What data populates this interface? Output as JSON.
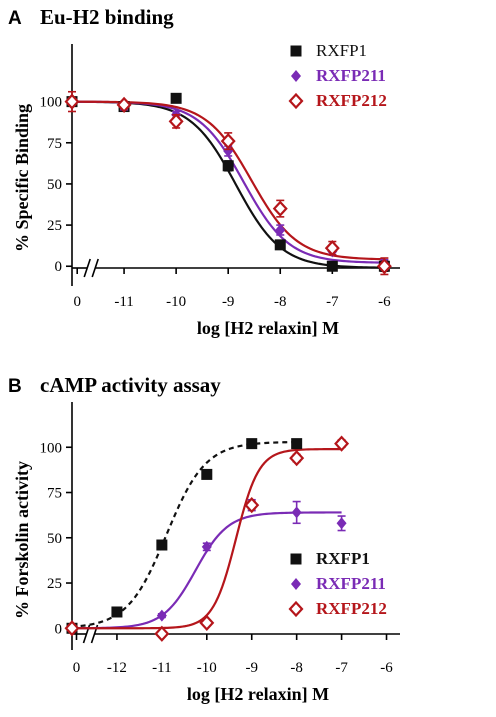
{
  "colors": {
    "rxfp1": "#111111",
    "rxfp211": "#7a2bb5",
    "rxfp212": "#b5161b",
    "axis": "#000000"
  },
  "chart_data": [
    {
      "panel": "A",
      "title": "Eu-H2 binding",
      "type": "scatter",
      "xlabel": "log [H2 relaxin] M",
      "ylabel": "% Specific Binding",
      "x_ticks": [
        "0",
        "-11",
        "-10",
        "-9",
        "-8",
        "-7",
        "-6"
      ],
      "x_tick_values": [
        -11.9,
        -11,
        -10,
        -9,
        -8,
        -7,
        -6
      ],
      "y_ticks": [
        "0",
        "25",
        "50",
        "75",
        "100"
      ],
      "y_tick_values": [
        0,
        25,
        50,
        75,
        100
      ],
      "xlim": [
        -12,
        -5.7
      ],
      "ylim": [
        -12,
        135
      ],
      "axis_break": true,
      "legend_position": "top-right",
      "series": [
        {
          "name": "RXFP1",
          "color_key": "rxfp1",
          "marker": "square",
          "x": [
            -12,
            -11,
            -10,
            -9,
            -8,
            -7,
            -6
          ],
          "y": [
            100,
            97,
            102,
            61,
            13,
            0,
            0
          ],
          "err": [
            0,
            2,
            2,
            3,
            2,
            2,
            3
          ],
          "fit": {
            "top": 100,
            "bottom": -1,
            "logEC50": -8.85,
            "hill": 1.0,
            "dashed": false
          }
        },
        {
          "name": "RXFP211",
          "color_key": "rxfp211",
          "marker": "diamond",
          "x": [
            -12,
            -11,
            -10,
            -9,
            -8,
            -7,
            -6
          ],
          "y": [
            100,
            97,
            92,
            70,
            22,
            9,
            1
          ],
          "err": [
            0,
            2,
            2,
            3,
            3,
            2,
            3
          ],
          "fit": {
            "top": 100,
            "bottom": 2,
            "logEC50": -8.7,
            "hill": 1.0,
            "dashed": false
          }
        },
        {
          "name": "RXFP212",
          "color_key": "rxfp212",
          "marker": "open-diamond",
          "x": [
            -12,
            -11,
            -10,
            -9,
            -8,
            -7,
            -6
          ],
          "y": [
            100,
            98,
            88,
            76,
            35,
            11,
            0
          ],
          "err": [
            6,
            2,
            4,
            5,
            5,
            4,
            5
          ],
          "fit": {
            "top": 100,
            "bottom": 4,
            "logEC50": -8.55,
            "hill": 1.0,
            "dashed": false
          }
        }
      ]
    },
    {
      "panel": "B",
      "title": "cAMP activity assay",
      "type": "scatter",
      "xlabel": "log [H2 relaxin] M",
      "ylabel": "% Forskolin activity",
      "x_ticks": [
        "0",
        "-12",
        "-11",
        "-10",
        "-9",
        "-8",
        "-7",
        "-6"
      ],
      "x_tick_values": [
        -12.9,
        -12,
        -11,
        -10,
        -9,
        -8,
        -7,
        -6
      ],
      "y_ticks": [
        "0",
        "25",
        "50",
        "75",
        "100"
      ],
      "y_tick_values": [
        0,
        25,
        50,
        75,
        100
      ],
      "xlim": [
        -13,
        -5.7
      ],
      "ylim": [
        -12,
        125
      ],
      "axis_break": true,
      "legend_position": "bottom-right",
      "series": [
        {
          "name": "RXFP1",
          "color_key": "rxfp1",
          "marker": "square",
          "x": [
            -13,
            -12,
            -11,
            -10,
            -9,
            -8
          ],
          "y": [
            0,
            9,
            46,
            85,
            102,
            102
          ],
          "err": [
            0,
            1,
            2,
            2,
            2,
            2
          ],
          "fit": {
            "top": 103,
            "bottom": 0,
            "logEC50": -10.9,
            "hill": 1.0,
            "dashed": true
          }
        },
        {
          "name": "RXFP211",
          "color_key": "rxfp211",
          "marker": "diamond",
          "x": [
            -13,
            -11,
            -10,
            -9,
            -8,
            -7
          ],
          "y": [
            0,
            7,
            45,
            68,
            64,
            58
          ],
          "err": [
            0,
            1,
            2,
            3,
            6,
            4
          ],
          "fit": {
            "top": 64,
            "bottom": 0,
            "logEC50": -10.25,
            "hill": 1.2,
            "dashed": false
          }
        },
        {
          "name": "RXFP212",
          "color_key": "rxfp212",
          "marker": "open-diamond",
          "x": [
            -13,
            -11,
            -10,
            -9,
            -8,
            -7
          ],
          "y": [
            0,
            -3,
            3,
            68,
            94,
            102
          ],
          "err": [
            0,
            1,
            1,
            2,
            2,
            2
          ],
          "fit": {
            "top": 99,
            "bottom": 0,
            "logEC50": -9.35,
            "hill": 1.7,
            "dashed": false
          }
        }
      ]
    }
  ]
}
